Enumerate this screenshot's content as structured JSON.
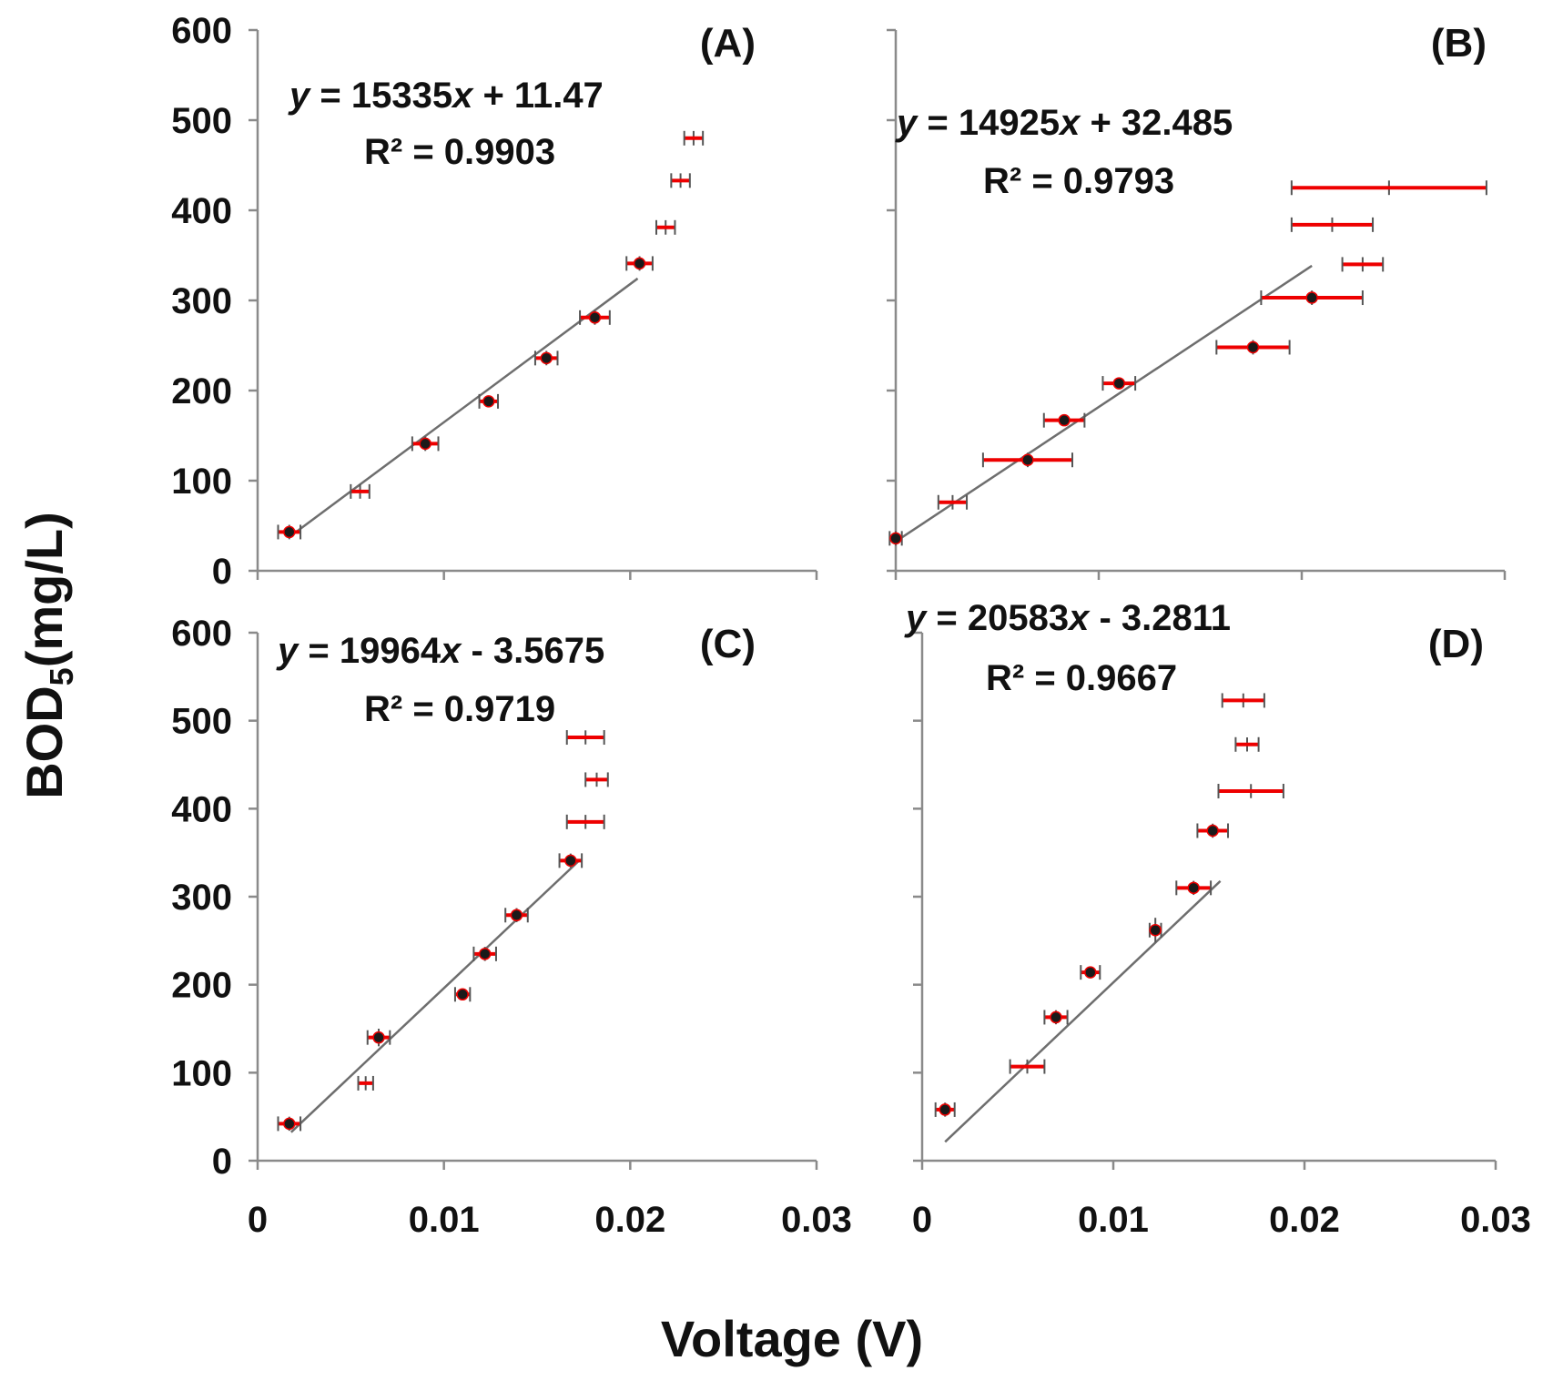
{
  "figure": {
    "ylabel_main": "BOD",
    "ylabel_sub": "5",
    "ylabel_tail": "(mg/L)",
    "xlabel": "Voltage (V)"
  },
  "chart_data": [
    {
      "id": "A",
      "type": "scatter",
      "label": "(A)",
      "equation_y": "y",
      "equation_rest": " = 15335",
      "equation_x": "x",
      "equation_tail": " + 11.47",
      "r2": "R² = 0.9903",
      "trend": {
        "slope": 15335,
        "intercept": 11.47,
        "x_range": [
          0.0018,
          0.0204
        ]
      },
      "xlim": [
        0,
        0.03
      ],
      "ylim": [
        0,
        600
      ],
      "y_ticks": [
        "0",
        "100",
        "200",
        "300",
        "400",
        "500",
        "600"
      ],
      "x_ticks": [],
      "points": [
        {
          "x": 0.0017,
          "y": 43,
          "xerr": 0.0006,
          "yerr": 8,
          "marker": true
        },
        {
          "x": 0.0055,
          "y": 88,
          "xerr": 0.0005,
          "yerr": 8,
          "marker": false
        },
        {
          "x": 0.009,
          "y": 141,
          "xerr": 0.0007,
          "yerr": 8,
          "marker": true
        },
        {
          "x": 0.0124,
          "y": 188,
          "xerr": 0.0005,
          "yerr": 5,
          "marker": true
        },
        {
          "x": 0.0155,
          "y": 236,
          "xerr": 0.0006,
          "yerr": 8,
          "marker": true
        },
        {
          "x": 0.0181,
          "y": 281,
          "xerr": 0.0008,
          "yerr": 8,
          "marker": true
        },
        {
          "x": 0.0205,
          "y": 341,
          "xerr": 0.0007,
          "yerr": 8,
          "marker": true
        },
        {
          "x": 0.0219,
          "y": 381,
          "xerr": 0.0005,
          "yerr": 8,
          "marker": false
        },
        {
          "x": 0.0227,
          "y": 433,
          "xerr": 0.0005,
          "yerr": 8,
          "marker": false
        },
        {
          "x": 0.0234,
          "y": 480,
          "xerr": 0.0005,
          "yerr": 8,
          "marker": false
        }
      ]
    },
    {
      "id": "B",
      "type": "scatter",
      "label": "(B)",
      "equation_y": "y",
      "equation_rest": " = 14925",
      "equation_x": "x",
      "equation_tail": " + 32.485",
      "r2": "R² = 0.9793",
      "trend": {
        "slope": 14925,
        "intercept": 32.485,
        "x_range": [
          0.0,
          0.0205
        ]
      },
      "xlim": [
        0,
        0.03
      ],
      "ylim": [
        0,
        600
      ],
      "y_ticks": [],
      "x_ticks": [],
      "points": [
        {
          "x": 0.0,
          "y": 36,
          "xerr": 0.0003,
          "yerr": 8,
          "marker": true
        },
        {
          "x": 0.0028,
          "y": 76,
          "xerr": 0.0007,
          "yerr": 8,
          "marker": false
        },
        {
          "x": 0.0065,
          "y": 123,
          "xerr": 0.0022,
          "yerr": 8,
          "marker": true
        },
        {
          "x": 0.0083,
          "y": 167,
          "xerr": 0.001,
          "yerr": 5,
          "marker": true
        },
        {
          "x": 0.011,
          "y": 208,
          "xerr": 0.0008,
          "yerr": 5,
          "marker": true
        },
        {
          "x": 0.0176,
          "y": 248,
          "xerr": 0.0018,
          "yerr": 8,
          "marker": true
        },
        {
          "x": 0.0205,
          "y": 303,
          "xerr": 0.0025,
          "yerr": 8,
          "marker": true
        },
        {
          "x": 0.023,
          "y": 340,
          "xerr": 0.001,
          "yerr": 8,
          "marker": false
        },
        {
          "x": 0.0215,
          "y": 384,
          "xerr": 0.002,
          "yerr": 8,
          "marker": false
        },
        {
          "x": 0.0243,
          "y": 425,
          "xerr": 0.0048,
          "yerr": 8,
          "marker": false
        }
      ]
    },
    {
      "id": "C",
      "type": "scatter",
      "label": "(C)",
      "equation_y": "y",
      "equation_rest": " = 19964",
      "equation_x": "x",
      "equation_tail": " - 3.5675",
      "r2": "R² = 0.9719",
      "trend": {
        "slope": 19964,
        "intercept": -3.5675,
        "x_range": [
          0.0018,
          0.0172
        ]
      },
      "xlim": [
        0,
        0.03
      ],
      "ylim": [
        0,
        600
      ],
      "y_ticks": [
        "0",
        "100",
        "200",
        "300",
        "400",
        "500",
        "600"
      ],
      "x_ticks": [
        "0",
        "0.01",
        "0.02",
        "0.03"
      ],
      "points": [
        {
          "x": 0.0017,
          "y": 42,
          "xerr": 0.0006,
          "yerr": 8,
          "marker": true
        },
        {
          "x": 0.0058,
          "y": 88,
          "xerr": 0.0004,
          "yerr": 8,
          "marker": false
        },
        {
          "x": 0.0065,
          "y": 140,
          "xerr": 0.0006,
          "yerr": 10,
          "marker": true
        },
        {
          "x": 0.011,
          "y": 189,
          "xerr": 0.0004,
          "yerr": 5,
          "marker": true
        },
        {
          "x": 0.0122,
          "y": 235,
          "xerr": 0.0006,
          "yerr": 8,
          "marker": true
        },
        {
          "x": 0.0139,
          "y": 279,
          "xerr": 0.0006,
          "yerr": 8,
          "marker": true
        },
        {
          "x": 0.0168,
          "y": 341,
          "xerr": 0.0006,
          "yerr": 8,
          "marker": true
        },
        {
          "x": 0.0176,
          "y": 385,
          "xerr": 0.001,
          "yerr": 8,
          "marker": false
        },
        {
          "x": 0.0182,
          "y": 433,
          "xerr": 0.0006,
          "yerr": 8,
          "marker": false
        },
        {
          "x": 0.0176,
          "y": 481,
          "xerr": 0.001,
          "yerr": 8,
          "marker": false
        }
      ]
    },
    {
      "id": "D",
      "type": "scatter",
      "label": "(D)",
      "equation_y": "y",
      "equation_rest": " = 20583",
      "equation_x": "x",
      "equation_tail": " - 3.2811",
      "r2": "R² = 0.9667",
      "trend": {
        "slope": 20583,
        "intercept": -3.2811,
        "x_range": [
          0.0012,
          0.0156
        ]
      },
      "xlim": [
        0,
        0.03
      ],
      "ylim": [
        0,
        600
      ],
      "y_ticks": [],
      "x_ticks": [
        "0",
        "0.01",
        "0.02",
        "0.03"
      ],
      "points": [
        {
          "x": 0.0012,
          "y": 58,
          "xerr": 0.0005,
          "yerr": 8,
          "marker": true
        },
        {
          "x": 0.0055,
          "y": 107,
          "xerr": 0.0009,
          "yerr": 8,
          "marker": false
        },
        {
          "x": 0.007,
          "y": 163,
          "xerr": 0.0006,
          "yerr": 8,
          "marker": true
        },
        {
          "x": 0.0088,
          "y": 214,
          "xerr": 0.0005,
          "yerr": 5,
          "marker": true
        },
        {
          "x": 0.0122,
          "y": 262,
          "xerr": 0.0003,
          "yerr": 14,
          "marker": true
        },
        {
          "x": 0.0142,
          "y": 310,
          "xerr": 0.0009,
          "yerr": 8,
          "marker": true
        },
        {
          "x": 0.0152,
          "y": 375,
          "xerr": 0.0008,
          "yerr": 8,
          "marker": true
        },
        {
          "x": 0.0172,
          "y": 420,
          "xerr": 0.0017,
          "yerr": 8,
          "marker": false
        },
        {
          "x": 0.017,
          "y": 473,
          "xerr": 0.0006,
          "yerr": 8,
          "marker": false
        },
        {
          "x": 0.0168,
          "y": 523,
          "xerr": 0.0011,
          "yerr": 8,
          "marker": false
        }
      ]
    }
  ]
}
